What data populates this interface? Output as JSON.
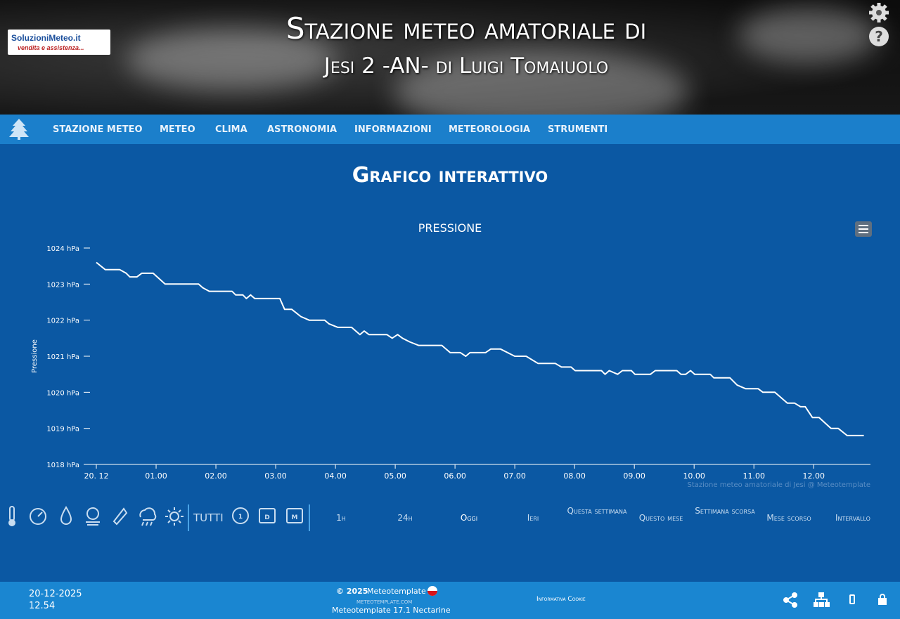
{
  "header": {
    "logo_name": "SoluzioniMeteo.it",
    "logo_tagline": "vendita e assistenza...",
    "title_line1": "Stazione meteo amatoriale di",
    "title_line2": "Jesi 2 -AN- di Luigi Tomaiuolo"
  },
  "nav": [
    "STAZIONE METEO",
    "METEO",
    "CLIMA",
    "ASTRONOMIA",
    "INFORMAZIONI",
    "METEOROLOGIA",
    "STRUMENTI"
  ],
  "page_title": "Grafico interattivo",
  "chart_data": {
    "type": "line",
    "title": "PRESSIONE",
    "y_label": "Pressione",
    "credit": "Stazione meteo amatoriale di Jesi @ Meteotemplate",
    "color": "#ffffff",
    "x": [
      0,
      0.15,
      0.39,
      0.5,
      0.56,
      0.68,
      0.76,
      0.95,
      1.15,
      1.35,
      1.47,
      1.71,
      1.78,
      1.89,
      2.27,
      2.33,
      2.45,
      2.51,
      2.58,
      2.65,
      3.07,
      3.15,
      3.27,
      3.42,
      3.56,
      3.82,
      3.89,
      4.04,
      4.27,
      4.41,
      4.48,
      4.56,
      4.86,
      4.95,
      5.04,
      5.12,
      5.24,
      5.39,
      5.78,
      5.92,
      6.09,
      6.18,
      6.25,
      6.51,
      6.6,
      6.76,
      6.88,
      7.0,
      7.19,
      7.39,
      7.68,
      7.78,
      7.94,
      8.01,
      8.45,
      8.51,
      8.58,
      8.72,
      8.8,
      8.95,
      9.01,
      9.27,
      9.35,
      9.71,
      9.78,
      9.86,
      9.94,
      10.01,
      10.27,
      10.33,
      10.6,
      10.72,
      10.86,
      11.07,
      11.15,
      11.35,
      11.56,
      11.68,
      11.78,
      11.86,
      11.98,
      12.09,
      12.29,
      12.41,
      12.56,
      12.84
    ],
    "values": [
      1023.6,
      1023.4,
      1023.4,
      1023.3,
      1023.2,
      1023.2,
      1023.3,
      1023.3,
      1023.0,
      1023.0,
      1023.0,
      1023.0,
      1022.9,
      1022.8,
      1022.8,
      1022.7,
      1022.7,
      1022.6,
      1022.7,
      1022.6,
      1022.6,
      1022.3,
      1022.3,
      1022.1,
      1022.0,
      1022.0,
      1021.9,
      1021.8,
      1021.8,
      1021.6,
      1021.7,
      1021.6,
      1021.6,
      1021.5,
      1021.6,
      1021.5,
      1021.4,
      1021.3,
      1021.3,
      1021.1,
      1021.1,
      1021.0,
      1021.1,
      1021.1,
      1021.2,
      1021.2,
      1021.1,
      1021.0,
      1021.0,
      1020.8,
      1020.8,
      1020.7,
      1020.7,
      1020.6,
      1020.6,
      1020.5,
      1020.6,
      1020.5,
      1020.6,
      1020.6,
      1020.5,
      1020.5,
      1020.6,
      1020.6,
      1020.5,
      1020.5,
      1020.6,
      1020.5,
      1020.5,
      1020.4,
      1020.4,
      1020.2,
      1020.1,
      1020.1,
      1020.0,
      1020.0,
      1019.7,
      1019.7,
      1019.6,
      1019.6,
      1019.3,
      1019.3,
      1019.0,
      1019.0,
      1018.8,
      1018.8
    ],
    "xlim": [
      -0.2,
      12.95
    ],
    "ylim": [
      1018,
      1024
    ],
    "xticks": [
      {
        "value": 0,
        "label": "20. 12"
      },
      {
        "value": 1,
        "label": "01.00"
      },
      {
        "value": 2,
        "label": "02.00"
      },
      {
        "value": 3,
        "label": "03.00"
      },
      {
        "value": 4,
        "label": "04.00"
      },
      {
        "value": 5,
        "label": "05.00"
      },
      {
        "value": 6,
        "label": "06.00"
      },
      {
        "value": 7,
        "label": "07.00"
      },
      {
        "value": 8,
        "label": "08.00"
      },
      {
        "value": 9,
        "label": "09.00"
      },
      {
        "value": 10,
        "label": "10.00"
      },
      {
        "value": 11,
        "label": "11.00"
      },
      {
        "value": 12,
        "label": "12.00"
      }
    ],
    "yticks": [
      {
        "value": 1018,
        "label": "1018 hPa"
      },
      {
        "value": 1019,
        "label": "1019 hPa"
      },
      {
        "value": 1020,
        "label": "1020 hPa"
      },
      {
        "value": 1021,
        "label": "1021 hPa"
      },
      {
        "value": 1022,
        "label": "1022 hPa"
      },
      {
        "value": 1023,
        "label": "1023 hPa"
      },
      {
        "value": 1024,
        "label": "1024 hPa"
      }
    ]
  },
  "controls": {
    "all": "TUTTI",
    "ranges": [
      "1h",
      "24h",
      "Oggi",
      "Ieri",
      "Questa settimana",
      "Questo mese",
      "Settimana scorsa",
      "Mese scorso",
      "Intervallo"
    ]
  },
  "footer": {
    "date": "20-12-2025",
    "time": "12.54",
    "copyright": "© 2025",
    "brand": "Meteotemplate",
    "site": "meteotemplate.com",
    "version": "Meteotemplate 17.1 Nectarine",
    "cookie": "Informativa Cookie"
  }
}
